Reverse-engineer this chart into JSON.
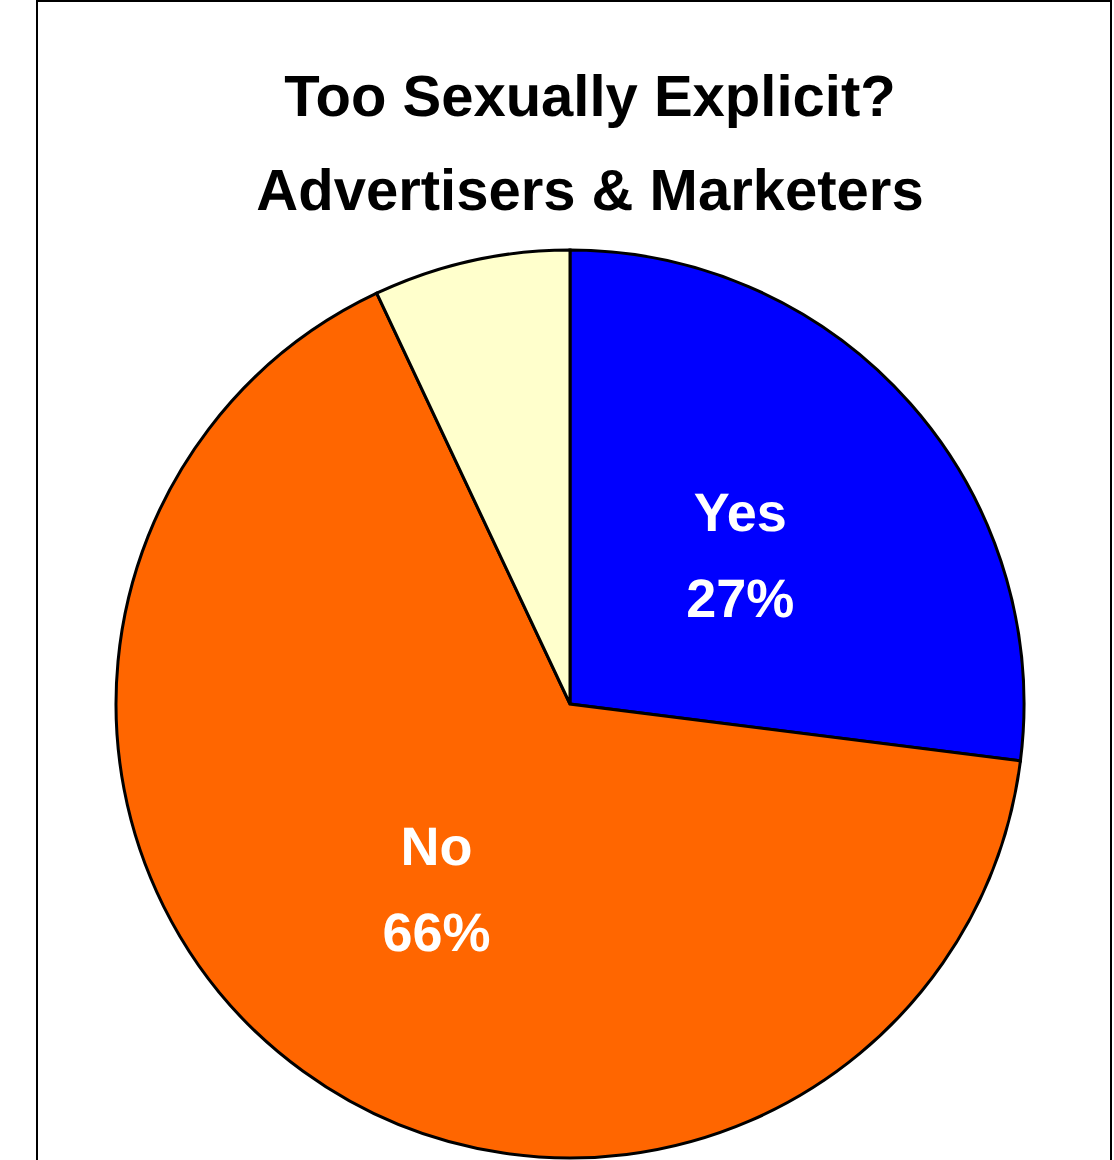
{
  "chart_data": {
    "type": "pie",
    "title": "Too Sexually Explicit?\nAdvertisers & Marketers",
    "categories": [
      "Yes",
      "No",
      null
    ],
    "values": [
      27,
      66,
      7
    ],
    "colors": [
      "#0000ff",
      "#ff6600",
      "#ffffcc"
    ],
    "value_labels": [
      "27%",
      "66%",
      null
    ]
  }
}
